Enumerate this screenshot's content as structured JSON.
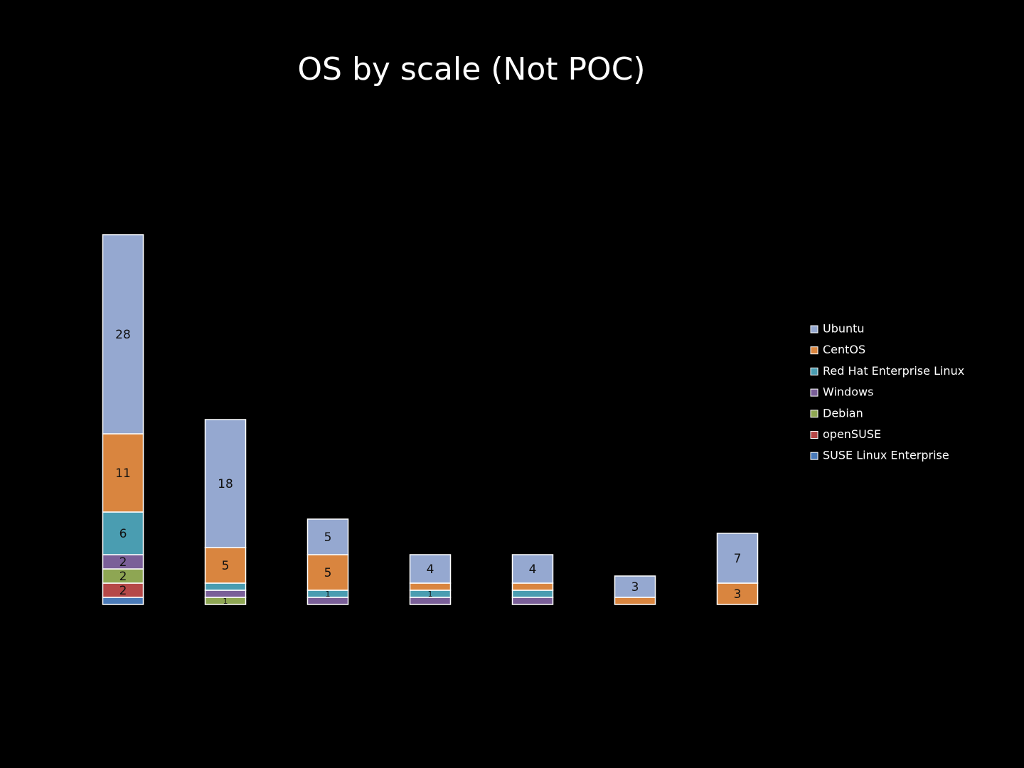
{
  "chart_data": {
    "type": "stacked_bar",
    "title": "OS by scale (Not POC)",
    "categories": [
      null,
      null,
      null,
      null,
      null,
      null,
      null
    ],
    "ylim": [
      0,
      55
    ],
    "legend": "right",
    "series": [
      {
        "name": "Ubuntu",
        "color": "#95a8d0",
        "values": [
          28,
          18,
          5,
          4,
          4,
          3,
          7
        ],
        "value_labels": [
          "28",
          "18",
          "5",
          "4",
          "4",
          "3",
          "7"
        ]
      },
      {
        "name": "CentOS",
        "color": "#d9853f",
        "values": [
          11,
          5,
          5,
          1,
          1,
          1,
          3
        ],
        "value_labels": [
          "11",
          "5",
          "5",
          null,
          null,
          null,
          "3"
        ]
      },
      {
        "name": "Red Hat Enterprise Linux",
        "color": "#4a9db1",
        "values": [
          6,
          1,
          1,
          1,
          1,
          null,
          null
        ],
        "value_labels": [
          "6",
          null,
          "1",
          "1",
          null,
          null,
          null
        ]
      },
      {
        "name": "Windows",
        "color": "#7a5f98",
        "values": [
          2,
          1,
          1,
          1,
          1,
          null,
          null
        ],
        "value_labels": [
          "2",
          null,
          null,
          null,
          null,
          null,
          null
        ]
      },
      {
        "name": "Debian",
        "color": "#8ea653",
        "values": [
          2,
          1,
          null,
          null,
          null,
          null,
          null
        ],
        "value_labels": [
          "2",
          "1",
          null,
          null,
          null,
          null,
          null
        ]
      },
      {
        "name": "openSUSE",
        "color": "#b54848",
        "values": [
          2,
          null,
          null,
          null,
          null,
          null,
          null
        ],
        "value_labels": [
          "2",
          null,
          null,
          null,
          null,
          null,
          null
        ]
      },
      {
        "name": "SUSE Linux Enterprise",
        "color": "#4a7ab8",
        "values": [
          1,
          null,
          null,
          null,
          null,
          null,
          null
        ],
        "value_labels": [
          null,
          null,
          null,
          null,
          null,
          null,
          null
        ]
      }
    ]
  }
}
